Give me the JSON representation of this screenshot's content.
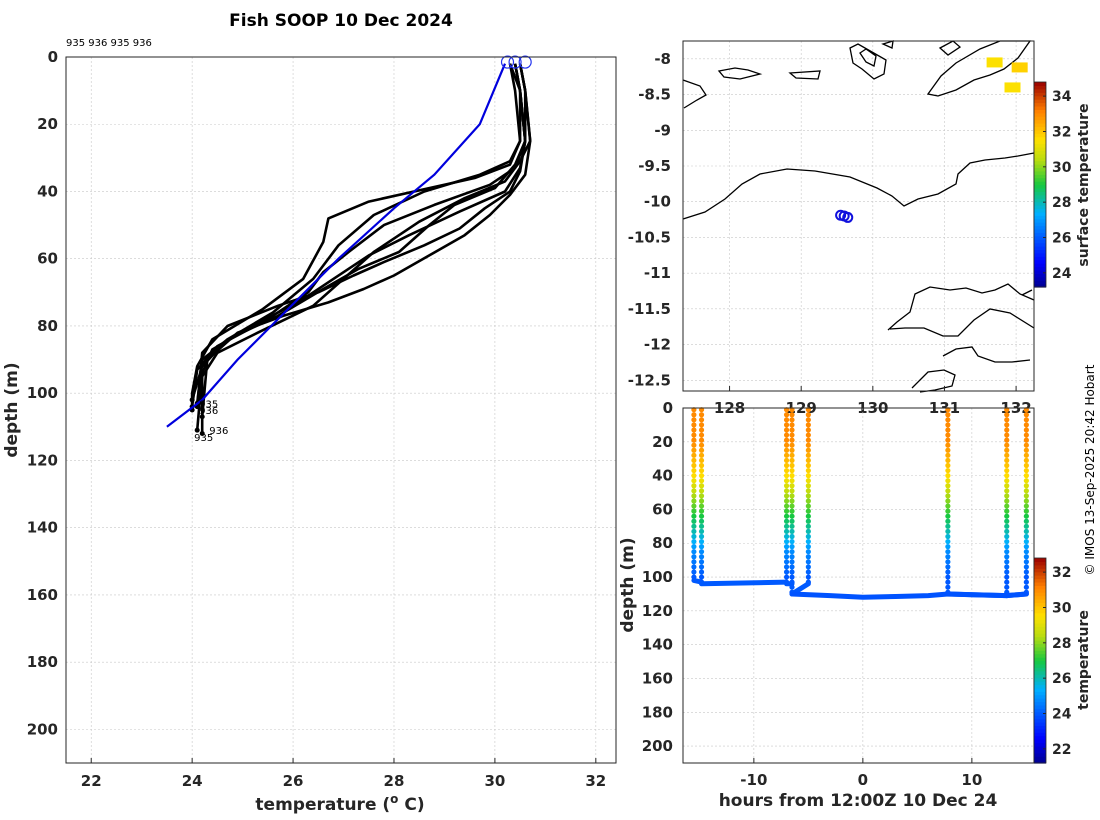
{
  "figure": {
    "title": "Fish SOOP 10 Dec 2024",
    "credit": "© IMOS 13-Sep-2025 20:42 Hobart"
  },
  "chart_data": [
    {
      "type": "line",
      "name": "profiles",
      "profile_ids_text": "935 936 935 936",
      "xlabel": "temperature (o C)",
      "xlabel_main": "temperature (",
      "xlabel_sup": "o",
      "xlabel_end": " C)",
      "ylabel": "depth (m)",
      "xlim": [
        21.5,
        32.4
      ],
      "ylim": [
        210,
        0
      ],
      "xticks": [
        22,
        24,
        26,
        28,
        30,
        32
      ],
      "yticks": [
        0,
        20,
        40,
        60,
        80,
        100,
        120,
        140,
        160,
        180,
        200
      ],
      "reference_profile": {
        "color": "#0000dd",
        "temperature": [
          30.2,
          29.7,
          28.8,
          28.0,
          26.9,
          25.9,
          24.9,
          24.2,
          23.5
        ],
        "depth": [
          2,
          20,
          35,
          45,
          60,
          75,
          90,
          102,
          110
        ]
      },
      "surface_markers": [
        {
          "temperature": 30.25,
          "depth": 1.5
        },
        {
          "temperature": 30.4,
          "depth": 1.5
        },
        {
          "temperature": 30.6,
          "depth": 1.5
        }
      ],
      "series": [
        {
          "name": "p1",
          "temperature": [
            30.3,
            30.5,
            30.5,
            30.3,
            29.6,
            27.5,
            26.7,
            26.6,
            26.2,
            25.4,
            24.4,
            24.1,
            24.0,
            24.0
          ],
          "depth": [
            2,
            10,
            25,
            32,
            36,
            43,
            48,
            55,
            66,
            75,
            84,
            92,
            100,
            105
          ]
        },
        {
          "name": "p2",
          "temperature": [
            30.4,
            30.5,
            30.6,
            30.4,
            29.9,
            28.8,
            27.8,
            27.1,
            26.6,
            26.3,
            25.5,
            24.5,
            24.1,
            24.0
          ],
          "depth": [
            2,
            10,
            25,
            33,
            38,
            44,
            50,
            58,
            64,
            70,
            78,
            86,
            93,
            104
          ]
        },
        {
          "name": "p3",
          "temperature": [
            30.5,
            30.6,
            30.6,
            30.5,
            30.2,
            29.3,
            28.3,
            27.5,
            26.8,
            26.2,
            25.2,
            24.4,
            24.2,
            24.1
          ],
          "depth": [
            2,
            10,
            25,
            33,
            40,
            46,
            53,
            59,
            66,
            72,
            80,
            87,
            94,
            111
          ]
        },
        {
          "name": "p4",
          "temperature": [
            30.4,
            30.5,
            30.6,
            30.5,
            30.3,
            29.8,
            29.3,
            28.6,
            27.8,
            27.2,
            26.5,
            25.7,
            24.7,
            24.2,
            24.1
          ],
          "depth": [
            2,
            10,
            25,
            34,
            40,
            45,
            51,
            56,
            61,
            65,
            70,
            74,
            80,
            88,
            104
          ]
        },
        {
          "name": "p5",
          "temperature": [
            30.5,
            30.6,
            30.7,
            30.5,
            30.2,
            29.4,
            28.5,
            27.6,
            27.0,
            26.4,
            25.3,
            24.5,
            24.2,
            24.2
          ],
          "depth": [
            2,
            10,
            25,
            31,
            37,
            42,
            49,
            58,
            66,
            74,
            82,
            88,
            95,
            112
          ]
        },
        {
          "name": "p6",
          "temperature": [
            30.4,
            30.5,
            30.6,
            30.4,
            30.0,
            29.2,
            28.7,
            28.1,
            27.3,
            26.6,
            25.7,
            24.7,
            24.2,
            24.1
          ],
          "depth": [
            2,
            10,
            25,
            32,
            39,
            44,
            50,
            58,
            63,
            69,
            77,
            84,
            90,
            103
          ]
        },
        {
          "name": "p7",
          "temperature": [
            30.5,
            30.6,
            30.7,
            30.6,
            30.3,
            29.9,
            29.4,
            28.7,
            28.0,
            27.4,
            26.7,
            25.8,
            24.9,
            24.3,
            24.2
          ],
          "depth": [
            2,
            10,
            25,
            35,
            41,
            47,
            53,
            59,
            65,
            69,
            73,
            77,
            82,
            90,
            107
          ]
        },
        {
          "name": "p8",
          "temperature": [
            30.3,
            30.4,
            30.5,
            30.3,
            29.7,
            28.6,
            27.6,
            26.9,
            26.4,
            25.6,
            24.7,
            24.2,
            24.0
          ],
          "depth": [
            2,
            10,
            25,
            31,
            35,
            40,
            47,
            56,
            66,
            76,
            84,
            92,
            102
          ]
        }
      ],
      "end_labels": [
        {
          "text": "935",
          "temperature": 24.1,
          "depth": 103
        },
        {
          "text": "936",
          "temperature": 24.1,
          "depth": 105
        },
        {
          "text": "936",
          "temperature": 24.3,
          "depth": 111
        },
        {
          "text": "935",
          "temperature": 24.0,
          "depth": 113
        }
      ]
    },
    {
      "type": "scatter",
      "name": "map",
      "colorbar_label": "surface temperature",
      "colorbar_range": [
        23.2,
        34.8
      ],
      "colorbar_ticks": [
        24,
        26,
        28,
        30,
        32,
        34
      ],
      "xlim": [
        127.35,
        132.25
      ],
      "ylim": [
        -12.65,
        -7.75
      ],
      "xticks_text": [
        "128",
        "129",
        "130",
        "131",
        "132"
      ],
      "xticks": [
        128,
        129,
        130,
        131,
        132
      ],
      "yticks": [
        -8,
        -8.5,
        -9,
        -9.5,
        -10,
        -10.5,
        -11,
        -11.5,
        -12,
        -12.5
      ],
      "ytick_labels": [
        "-8",
        "-8.5",
        "-9",
        "-9.5",
        "-10",
        "-10.5",
        "-11",
        "-11.5",
        "-12",
        "-12.5"
      ],
      "stations": [
        {
          "lon": 129.55,
          "lat": -10.19
        },
        {
          "lon": 129.6,
          "lat": -10.2
        },
        {
          "lon": 129.65,
          "lat": -10.22
        }
      ],
      "warm_patches": [
        {
          "lon": 132.05,
          "lat": -8.12,
          "temp": 31.8
        },
        {
          "lon": 131.7,
          "lat": -8.05,
          "temp": 31.5
        },
        {
          "lon": 131.95,
          "lat": -8.4,
          "temp": 31.5
        }
      ]
    },
    {
      "type": "scatter",
      "name": "timeseries",
      "colorbar_label": "temperature",
      "colorbar_range": [
        21.2,
        32.8
      ],
      "colorbar_ticks": [
        22,
        24,
        26,
        28,
        30,
        32
      ],
      "xlabel": "hours from 12:00Z 10 Dec 24",
      "ylabel": "depth (m)",
      "xlim": [
        -16.5,
        15.7
      ],
      "ylim": [
        210,
        0
      ],
      "xticks": [
        -10,
        0,
        10
      ],
      "yticks": [
        0,
        20,
        40,
        60,
        80,
        100,
        120,
        140,
        160,
        180,
        200
      ],
      "casts": [
        {
          "hour": -15.5,
          "max_depth": 102,
          "bottom_to": -14.8,
          "bottom_depth": 103
        },
        {
          "hour": -14.8,
          "max_depth": 104,
          "bottom_to": -7.0,
          "bottom_depth": 103
        },
        {
          "hour": -7.0,
          "max_depth": 104,
          "bottom_to": -6.5,
          "bottom_depth": 104
        },
        {
          "hour": -6.5,
          "max_depth": 110,
          "bottom_to": -5.0,
          "bottom_depth": 104
        },
        {
          "hour": -5.0,
          "max_depth": 104,
          "bottom_to": -5.0,
          "bottom_depth": 104
        },
        {
          "hour": 7.8,
          "max_depth": 110,
          "bottom_to": 13.2,
          "bottom_depth": 111
        },
        {
          "hour": 13.2,
          "max_depth": 111,
          "bottom_to": 15.0,
          "bottom_depth": 110
        },
        {
          "hour": 15.0,
          "max_depth": 110,
          "bottom_to": 15.0,
          "bottom_depth": 110
        }
      ],
      "deep_track": {
        "hours": [
          -6.5,
          -3,
          0,
          3,
          6,
          7.8,
          10,
          13.2,
          15.0
        ],
        "depth": [
          110,
          111,
          112,
          111.5,
          111,
          110,
          110.5,
          111,
          110
        ]
      }
    }
  ]
}
